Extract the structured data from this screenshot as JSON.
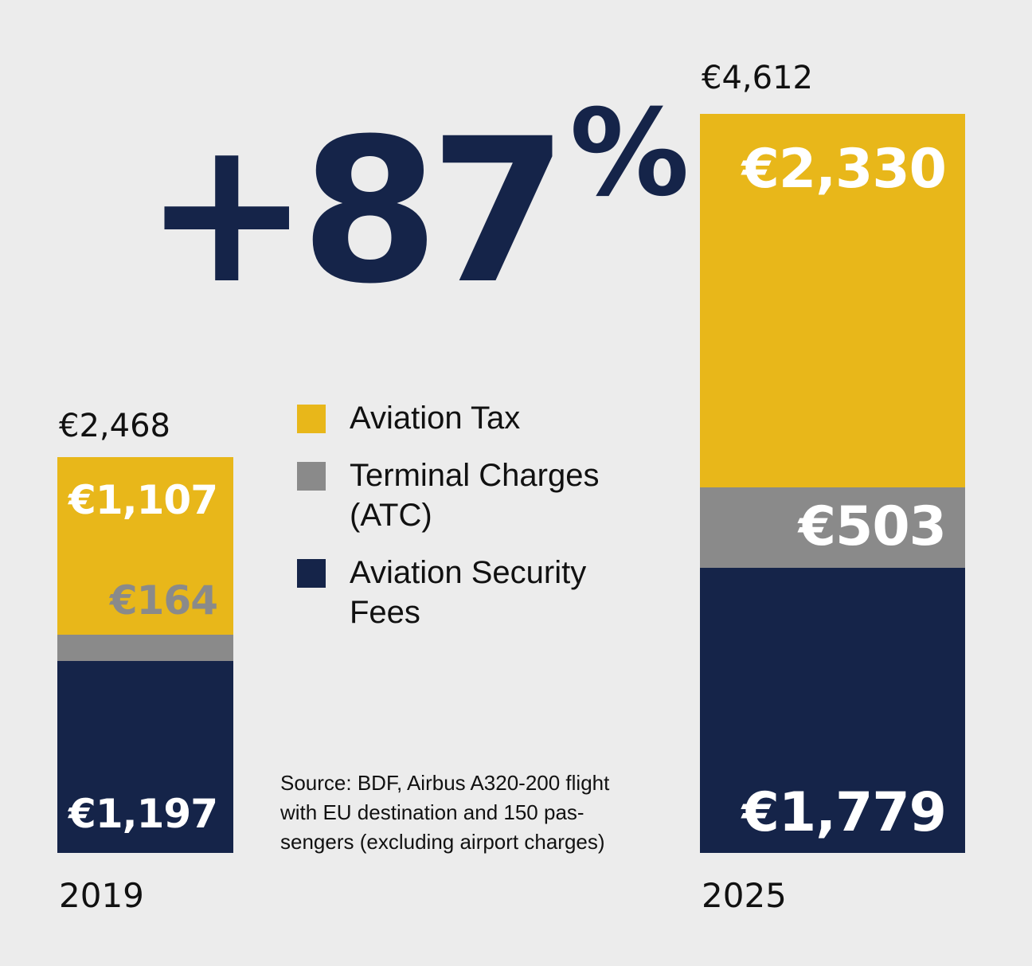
{
  "headline": {
    "number": "+87",
    "percent": "%"
  },
  "colors": {
    "background": "#ececec",
    "aviation_tax": "#e8b71a",
    "terminal_charges": "#8a8a8a",
    "security_fees": "#152449",
    "headline": "#152449"
  },
  "legend": [
    {
      "label_lines": [
        "Aviation Tax"
      ],
      "color": "#e8b71a"
    },
    {
      "label_lines": [
        "Terminal Charges",
        "(ATC)"
      ],
      "color": "#8a8a8a"
    },
    {
      "label_lines": [
        "Aviation Security",
        "Fees"
      ],
      "color": "#152449"
    }
  ],
  "source_lines": [
    "Source: BDF, Airbus A320-200 flight",
    "with EU destination and 150 pas-",
    "sengers (excluding airport charges)"
  ],
  "chart_data": {
    "type": "bar",
    "stacked": true,
    "categories": [
      "2019",
      "2025"
    ],
    "totals": [
      "€2,468",
      "€4,612"
    ],
    "series": [
      {
        "name": "Aviation Security Fees",
        "values": [
          1197,
          1779
        ],
        "labels": [
          "€1,197",
          "€1,779"
        ]
      },
      {
        "name": "Terminal Charges (ATC)",
        "values": [
          164,
          503
        ],
        "labels": [
          "€164",
          "€503"
        ]
      },
      {
        "name": "Aviation Tax",
        "values": [
          1107,
          2330
        ],
        "labels": [
          "€1,107",
          "€2,330"
        ]
      }
    ],
    "title": "",
    "xlabel": "",
    "ylabel": "",
    "grid": false,
    "legend_position": "center"
  }
}
